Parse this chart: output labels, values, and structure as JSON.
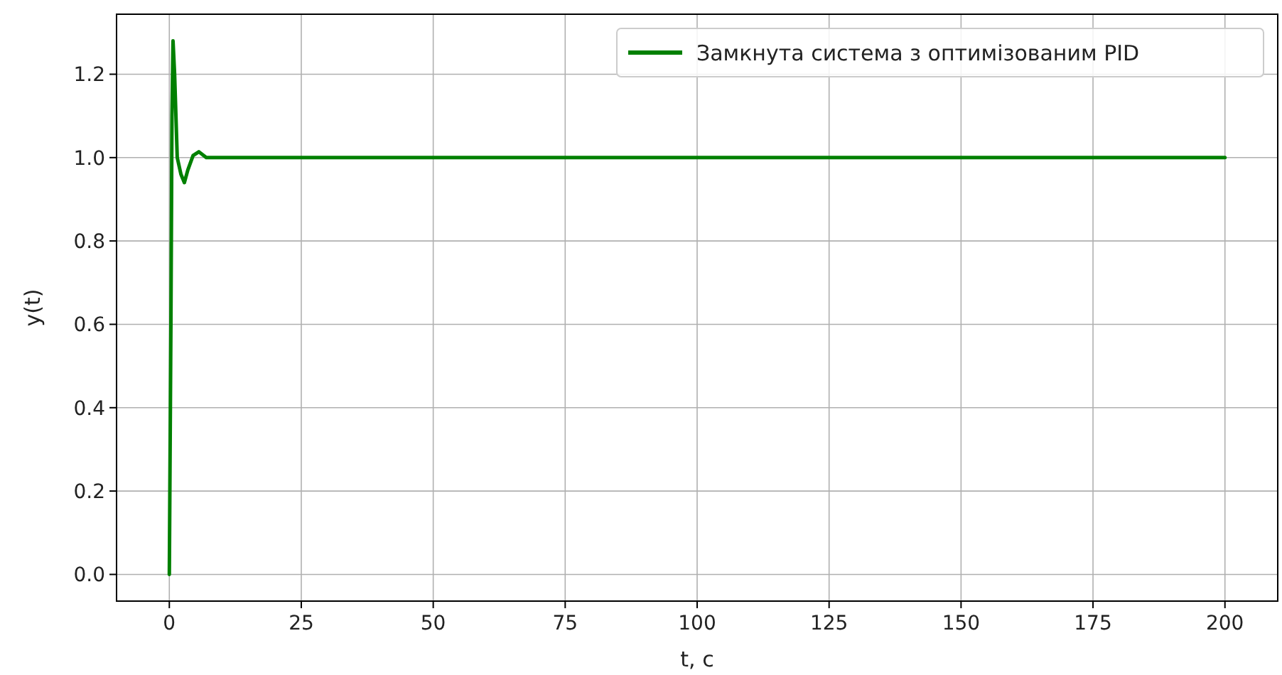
{
  "chart_data": {
    "type": "line",
    "xlabel": "t, c",
    "ylabel": "y(t)",
    "xlim": [
      -10,
      210
    ],
    "ylim": [
      -0.064,
      1.344
    ],
    "xticks": [
      0,
      25,
      50,
      75,
      100,
      125,
      150,
      175,
      200
    ],
    "yticks": [
      {
        "value": 0,
        "label": "0.0"
      },
      {
        "value": 0.2,
        "label": "0.2"
      },
      {
        "value": 0.4,
        "label": "0.4"
      },
      {
        "value": 0.6,
        "label": "0.6"
      },
      {
        "value": 0.8,
        "label": "0.8"
      },
      {
        "value": 1,
        "label": "1.0"
      },
      {
        "value": 1.2,
        "label": "1.2"
      }
    ],
    "grid": true,
    "legend": "top right",
    "line_style": "solid",
    "series": [
      {
        "name": "Замкнута система з оптимізованим PID",
        "color": "#008000",
        "x": [
          0,
          0.3,
          0.5,
          0.7,
          1.0,
          1.5,
          2.2,
          2.85,
          3.5,
          4.5,
          5.6,
          7,
          10,
          200
        ],
        "values": [
          0,
          0.6,
          1.1,
          1.28,
          1.2,
          1.0,
          0.96,
          0.94,
          0.97,
          1.005,
          1.014,
          1.0,
          1.0,
          1.0
        ]
      }
    ]
  }
}
